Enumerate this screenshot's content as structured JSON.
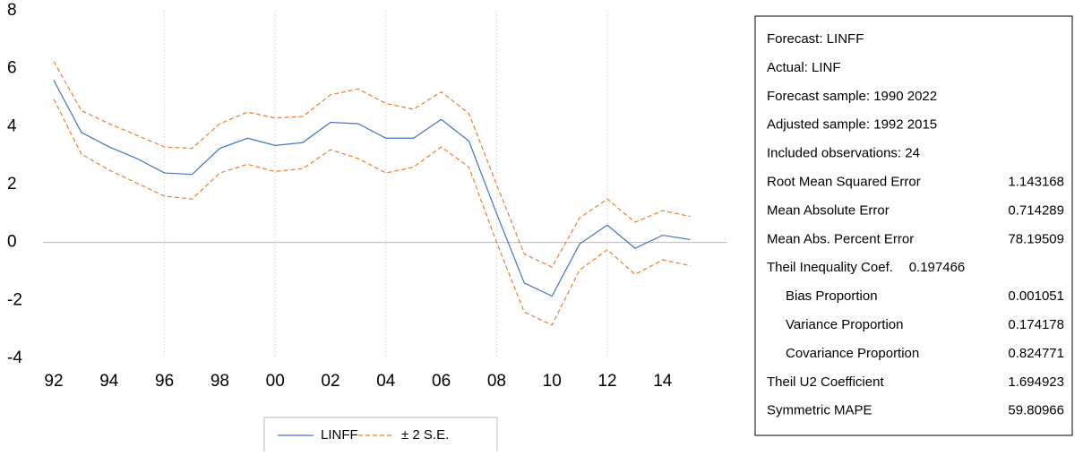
{
  "chart_data": {
    "type": "line",
    "categories": [
      "92",
      null,
      "94",
      null,
      "96",
      null,
      "98",
      null,
      "00",
      null,
      "02",
      null,
      "04",
      null,
      "06",
      null,
      "08",
      null,
      "10",
      null,
      "12",
      null,
      "14",
      null
    ],
    "series": [
      {
        "name": "LINFF",
        "color": "#4472c4",
        "values": [
          5.6,
          3.8,
          3.3,
          2.9,
          2.4,
          2.35,
          3.25,
          3.6,
          3.35,
          3.45,
          4.15,
          4.1,
          3.6,
          3.6,
          4.25,
          3.5,
          1.0,
          -1.4,
          -1.85,
          -0.05,
          0.6,
          -0.2,
          0.25,
          0.1
        ]
      },
      {
        "name": "± 2 S.E.",
        "color": "#ed7d31",
        "dashed": true,
        "upper": [
          6.25,
          4.55,
          4.1,
          3.7,
          3.3,
          3.25,
          4.1,
          4.5,
          4.3,
          4.35,
          5.1,
          5.3,
          4.8,
          4.6,
          5.2,
          4.45,
          2.0,
          -0.4,
          -0.85,
          0.85,
          1.5,
          0.7,
          1.1,
          0.9
        ],
        "lower": [
          4.95,
          3.05,
          2.5,
          2.05,
          1.6,
          1.5,
          2.4,
          2.7,
          2.45,
          2.55,
          3.2,
          2.9,
          2.4,
          2.6,
          3.3,
          2.6,
          0.0,
          -2.4,
          -2.85,
          -0.95,
          -0.25,
          -1.1,
          -0.6,
          -0.8
        ]
      }
    ],
    "ylim": [
      -4,
      8
    ],
    "yticks": [
      -4,
      -2,
      0,
      2,
      4,
      6,
      8
    ],
    "xgrid": true,
    "legend": "bottom"
  },
  "stats": {
    "rows": [
      [
        "Forecast: LINFF"
      ],
      [
        "Actual: LINF"
      ],
      [
        "Forecast sample: 1990 2022"
      ],
      [
        "Adjusted sample: 1992 2015"
      ],
      [
        "Included observations: 24"
      ],
      [
        "Root Mean Squared Error",
        "1.143168"
      ],
      [
        "Mean Absolute Error",
        "0.714289"
      ],
      [
        "Mean Abs. Percent Error",
        "78.19509"
      ],
      [
        "Theil Inequality Coef.",
        "0.197466"
      ],
      [
        "Bias Proportion",
        "0.001051"
      ],
      [
        "Variance Proportion",
        "0.174178"
      ],
      [
        "Covariance Proportion",
        "0.824771"
      ],
      [
        "Theil U2 Coefficient",
        "1.694923"
      ],
      [
        "Symmetric MAPE",
        "59.80966"
      ]
    ]
  }
}
